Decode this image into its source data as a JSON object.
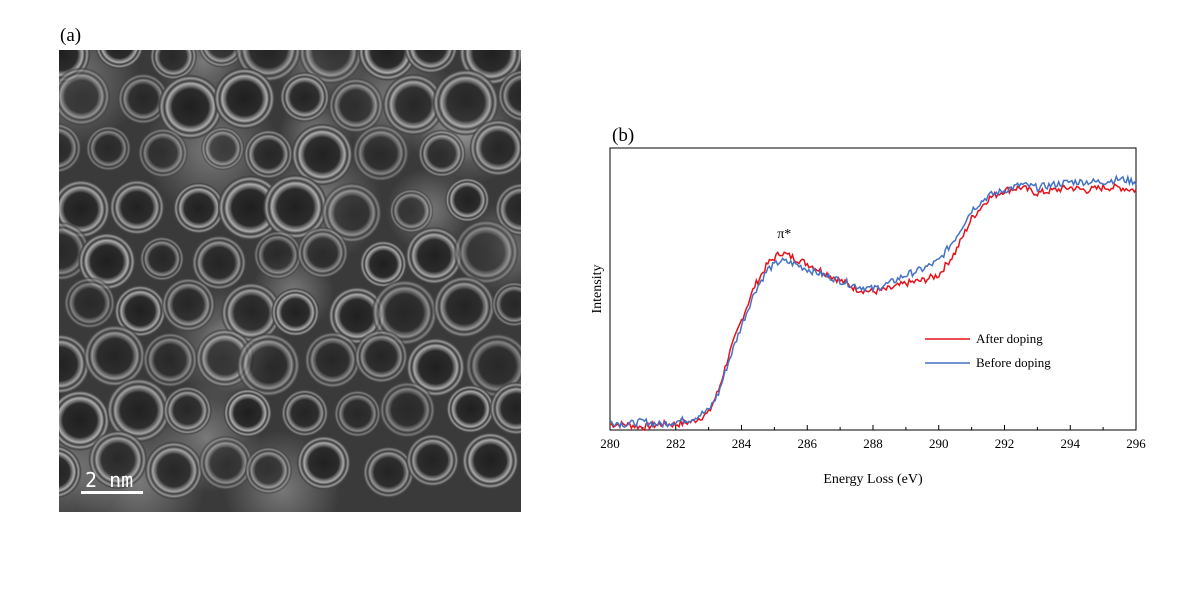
{
  "panels": {
    "a": {
      "label": "(a)",
      "scalebar_label": "2 nm"
    },
    "b": {
      "label": "(b)"
    }
  },
  "colors": {
    "after": "#e8111a",
    "before": "#4472c4",
    "tem_bg": "#3a3a3a"
  },
  "chart_data": {
    "type": "line",
    "xlabel": "Energy Loss (eV)",
    "ylabel": "Intensity",
    "xlim": [
      280,
      296
    ],
    "ylim": [
      0,
      1
    ],
    "xticks": [
      280,
      282,
      284,
      286,
      288,
      290,
      292,
      294,
      296
    ],
    "annotation": {
      "text": "π*",
      "x": 285.3,
      "y": 0.66
    },
    "legend_position": "center-right",
    "series": [
      {
        "name": "After doping",
        "color": "#e8111a",
        "x": [
          280,
          280.5,
          281,
          281.5,
          282,
          282.5,
          283,
          283.3,
          283.6,
          284,
          284.4,
          284.8,
          285.2,
          285.6,
          286,
          286.5,
          287,
          287.5,
          288,
          288.5,
          289,
          289.5,
          290,
          290.5,
          291,
          291.5,
          292,
          292.5,
          293,
          293.5,
          294,
          294.5,
          295,
          295.5,
          296
        ],
        "values": [
          0.02,
          0.02,
          0.01,
          0.02,
          0.02,
          0.03,
          0.06,
          0.14,
          0.26,
          0.39,
          0.51,
          0.59,
          0.63,
          0.61,
          0.59,
          0.56,
          0.53,
          0.5,
          0.49,
          0.5,
          0.52,
          0.53,
          0.55,
          0.63,
          0.75,
          0.82,
          0.85,
          0.86,
          0.84,
          0.85,
          0.86,
          0.85,
          0.86,
          0.86,
          0.85
        ]
      },
      {
        "name": "Before doping",
        "color": "#4472c4",
        "x": [
          280,
          280.5,
          281,
          281.5,
          282,
          282.5,
          283,
          283.3,
          283.6,
          284,
          284.4,
          284.8,
          285.2,
          285.6,
          286,
          286.5,
          287,
          287.5,
          288,
          288.5,
          289,
          289.5,
          290,
          290.5,
          291,
          291.5,
          292,
          292.5,
          293,
          293.5,
          294,
          294.5,
          295,
          295.5,
          296
        ],
        "values": [
          0.03,
          0.02,
          0.03,
          0.02,
          0.03,
          0.04,
          0.07,
          0.13,
          0.24,
          0.37,
          0.49,
          0.57,
          0.6,
          0.59,
          0.57,
          0.55,
          0.53,
          0.51,
          0.5,
          0.52,
          0.55,
          0.57,
          0.6,
          0.68,
          0.78,
          0.83,
          0.85,
          0.87,
          0.86,
          0.87,
          0.88,
          0.88,
          0.88,
          0.89,
          0.88
        ]
      }
    ]
  }
}
